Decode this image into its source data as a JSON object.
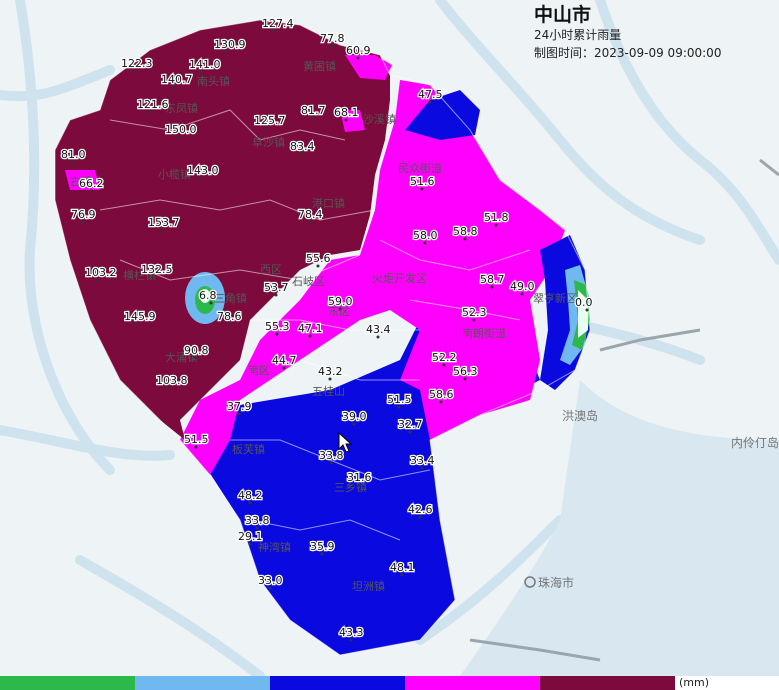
{
  "header": {
    "title": "中山市",
    "subtitle": "24小时累计雨量",
    "time": "制图时间：2023-09-09 09:00:00"
  },
  "colors": {
    "water": "#cfe3ef",
    "land": "#eef3f6",
    "green": "#2db84b",
    "lightblue": "#6fb8f0",
    "blue": "#0a0ae0",
    "magenta": "#ff00ff",
    "maroon": "#7d0a3c"
  },
  "legend": {
    "unit": "(mm)",
    "colors": [
      "#2db84b",
      "#6fb8f0",
      "#0a0ae0",
      "#ff00ff",
      "#7d0a3c",
      "#ffffff"
    ]
  },
  "towns": [
    "南头镇",
    "黄圃镇",
    "东凤镇",
    "阜沙镇",
    "小榄镇",
    "古镇",
    "港口镇",
    "民众街道",
    "横栏镇",
    "西区",
    "石岐区",
    "火炬开发区",
    "东区",
    "南区",
    "大涌镇",
    "南朗街道",
    "五桂山",
    "翠亨新区",
    "板芙镇",
    "三乡镇",
    "神湾镇",
    "坦洲镇",
    "三角镇",
    "沙溪镇"
  ],
  "places": [
    "洪澳岛",
    "内伶仃岛",
    "珠海市"
  ],
  "stations": [
    {
      "v": "127.4"
    },
    {
      "v": "130.9"
    },
    {
      "v": "122.3"
    },
    {
      "v": "141.0"
    },
    {
      "v": "140.7"
    },
    {
      "v": "77.8"
    },
    {
      "v": "60.9"
    },
    {
      "v": "121.6"
    },
    {
      "v": "150.0"
    },
    {
      "v": "125.7"
    },
    {
      "v": "81.7"
    },
    {
      "v": "68.1"
    },
    {
      "v": "47.5"
    },
    {
      "v": "83.4"
    },
    {
      "v": "81.0"
    },
    {
      "v": "66.2"
    },
    {
      "v": "143.0"
    },
    {
      "v": "51.6"
    },
    {
      "v": "76.9"
    },
    {
      "v": "153.7"
    },
    {
      "v": "78.4"
    },
    {
      "v": "51.8"
    },
    {
      "v": "58.0"
    },
    {
      "v": "58.8"
    },
    {
      "v": "103.2"
    },
    {
      "v": "132.5"
    },
    {
      "v": "55.6"
    },
    {
      "v": "58.7"
    },
    {
      "v": "49.0"
    },
    {
      "v": "6.8"
    },
    {
      "v": "53.7"
    },
    {
      "v": "59.0"
    },
    {
      "v": "0.0"
    },
    {
      "v": "78.6"
    },
    {
      "v": "52.3"
    },
    {
      "v": "145.9"
    },
    {
      "v": "55.3"
    },
    {
      "v": "47.1"
    },
    {
      "v": "43.4"
    },
    {
      "v": "90.8"
    },
    {
      "v": "44.7"
    },
    {
      "v": "52.2"
    },
    {
      "v": "43.2"
    },
    {
      "v": "56.3"
    },
    {
      "v": "103.8"
    },
    {
      "v": "58.6"
    },
    {
      "v": "51.5"
    },
    {
      "v": "37.9"
    },
    {
      "v": "39.0"
    },
    {
      "v": "32.7"
    },
    {
      "v": "51.5"
    },
    {
      "v": "33.8"
    },
    {
      "v": "33.4"
    },
    {
      "v": "31.6"
    },
    {
      "v": "48.2"
    },
    {
      "v": "42.6"
    },
    {
      "v": "33.8"
    },
    {
      "v": "29.1"
    },
    {
      "v": "35.9"
    },
    {
      "v": "48.1"
    },
    {
      "v": "33.0"
    },
    {
      "v": "43.3"
    }
  ]
}
